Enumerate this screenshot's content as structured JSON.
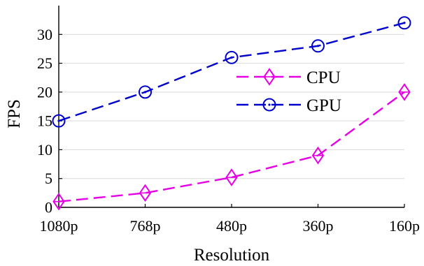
{
  "chart_data": {
    "type": "line",
    "categories": [
      "1080p",
      "768p",
      "480p",
      "360p",
      "160p"
    ],
    "xlabel": "Resolution",
    "ylabel": "FPS",
    "ylim": [
      0,
      35
    ],
    "yticks": [
      0,
      5,
      10,
      15,
      20,
      25,
      30
    ],
    "grid": {
      "horizontal": true,
      "vertical": false
    },
    "legend_position": "center-right",
    "series": [
      {
        "name": "CPU",
        "values": [
          1,
          2.5,
          5.2,
          9,
          20
        ],
        "color": "#e600e6",
        "marker": "diamond",
        "line_style": "dashed"
      },
      {
        "name": "GPU",
        "values": [
          15,
          20,
          26,
          28,
          32
        ],
        "color": "#0000cc",
        "marker": "circle",
        "line_style": "dashed"
      }
    ]
  }
}
